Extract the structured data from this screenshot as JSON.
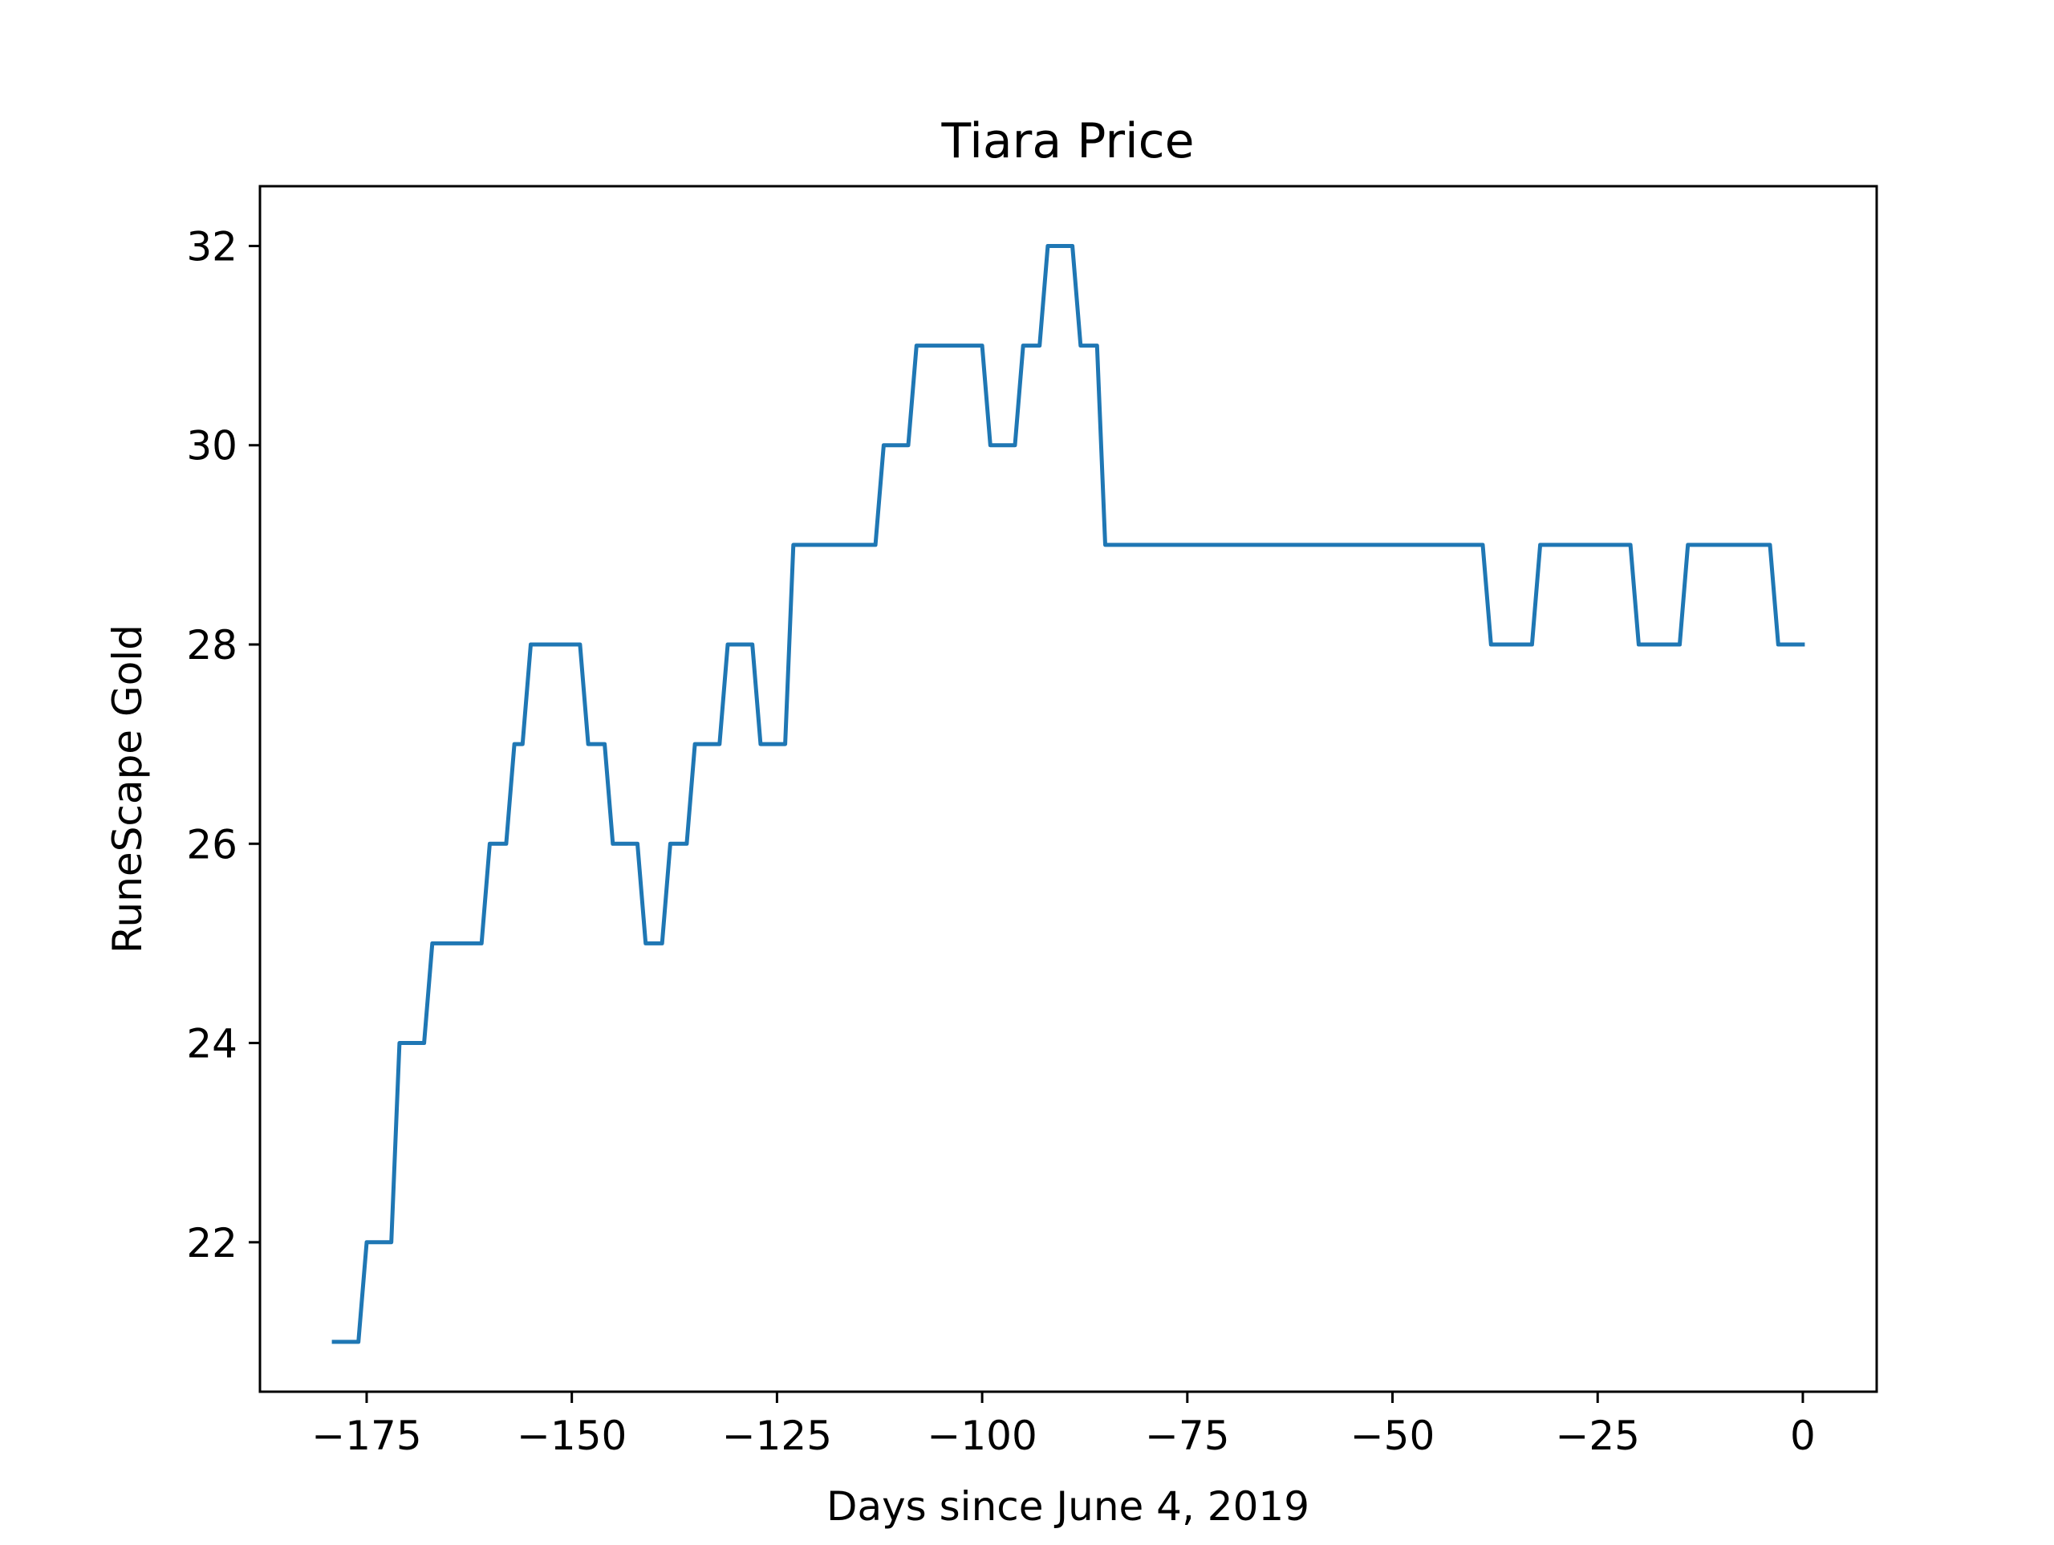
{
  "chart_data": {
    "type": "line",
    "title": "Tiara Price",
    "xlabel": "Days since June 4, 2019",
    "ylabel": "RuneScape Gold",
    "xlim": [
      -188,
      9
    ],
    "ylim": [
      20.5,
      32.6
    ],
    "x_ticks": [
      -175,
      -150,
      -125,
      -100,
      -75,
      -50,
      -25,
      0
    ],
    "x_tick_labels": [
      "−175",
      "−150",
      "−125",
      "−100",
      "−75",
      "−50",
      "−25",
      "0"
    ],
    "y_ticks": [
      22,
      24,
      26,
      28,
      30,
      32
    ],
    "y_tick_labels": [
      "22",
      "24",
      "26",
      "28",
      "30",
      "32"
    ],
    "grid": false,
    "line_color": "#1f77b4",
    "series": [
      {
        "x": [
          -179,
          -176,
          -175,
          -172,
          -171,
          -168,
          -167,
          -161,
          -160,
          -158,
          -157,
          -156,
          -155,
          -149,
          -148,
          -146,
          -145,
          -142,
          -141,
          -139,
          -138,
          -136,
          -135,
          -132,
          -131,
          -128,
          -127,
          -124,
          -123,
          -113,
          -112,
          -109,
          -108,
          -100,
          -99,
          -96,
          -95,
          -93,
          -92,
          -89,
          -88,
          -86,
          -85,
          -39,
          -38,
          -33,
          -32,
          -21,
          -20,
          -15,
          -14,
          -4,
          -3,
          0
        ],
        "y": [
          21,
          21,
          22,
          22,
          24,
          24,
          25,
          25,
          26,
          26,
          27,
          27,
          28,
          28,
          27,
          27,
          26,
          26,
          25,
          25,
          26,
          26,
          27,
          27,
          28,
          28,
          27,
          27,
          29,
          29,
          30,
          30,
          31,
          31,
          30,
          30,
          31,
          31,
          32,
          32,
          31,
          31,
          29,
          29,
          28,
          28,
          29,
          29,
          28,
          28,
          29,
          29,
          28,
          28
        ]
      }
    ]
  }
}
